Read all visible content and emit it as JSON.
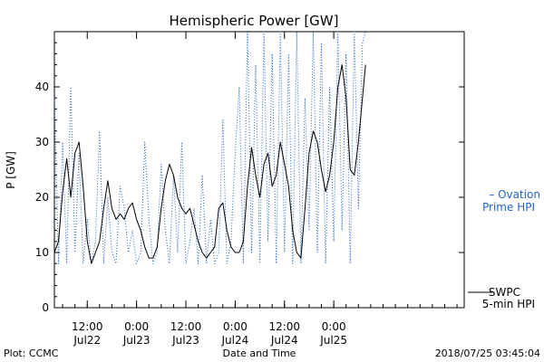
{
  "chart_data": {
    "type": "line",
    "title": "Hemispheric Power [GW]",
    "ylabel": "P [GW]",
    "xlabel": "Date and Time",
    "ylim": [
      0,
      50
    ],
    "yticks": [
      0,
      10,
      20,
      30,
      40
    ],
    "xlim": [
      "2018-07-21T04:00",
      "2018-07-25T07:45"
    ],
    "xticks": [
      {
        "t": "2018-07-21T12:00",
        "time": "12:00",
        "date": "Jul22"
      },
      {
        "t": "2018-07-22T00:00",
        "time": "0:00",
        "date": "Jul23"
      },
      {
        "t": "2018-07-22T12:00",
        "time": "12:00",
        "date": "Jul23"
      },
      {
        "t": "2018-07-23T00:00",
        "time": "0:00",
        "date": "Jul24"
      },
      {
        "t": "2018-07-23T12:00",
        "time": "12:00",
        "date": "Jul24"
      },
      {
        "t": "2018-07-24T00:00",
        "time": "0:00",
        "date": "Jul25"
      }
    ],
    "grid": false,
    "series": [
      {
        "name": "SWPC 5-min HPI",
        "color": "#000000",
        "style": "solid",
        "x": [
          "2018-07-21T04:00",
          "2018-07-21T05:00",
          "2018-07-21T06:00",
          "2018-07-21T07:00",
          "2018-07-21T08:00",
          "2018-07-21T09:00",
          "2018-07-21T10:00",
          "2018-07-21T11:00",
          "2018-07-21T12:00",
          "2018-07-21T13:00",
          "2018-07-21T14:00",
          "2018-07-21T15:00",
          "2018-07-21T16:00",
          "2018-07-21T17:00",
          "2018-07-21T18:00",
          "2018-07-21T19:00",
          "2018-07-21T20:00",
          "2018-07-21T21:00",
          "2018-07-21T22:00",
          "2018-07-21T23:00",
          "2018-07-22T00:00",
          "2018-07-22T01:00",
          "2018-07-22T02:00",
          "2018-07-22T03:00",
          "2018-07-22T04:00",
          "2018-07-22T05:00",
          "2018-07-22T06:00",
          "2018-07-22T07:00",
          "2018-07-22T08:00",
          "2018-07-22T09:00",
          "2018-07-22T10:00",
          "2018-07-22T11:00",
          "2018-07-22T12:00",
          "2018-07-22T13:00",
          "2018-07-22T14:00",
          "2018-07-22T15:00",
          "2018-07-22T16:00",
          "2018-07-22T17:00",
          "2018-07-22T18:00",
          "2018-07-22T19:00",
          "2018-07-22T20:00",
          "2018-07-22T21:00",
          "2018-07-22T22:00",
          "2018-07-22T23:00",
          "2018-07-23T00:00",
          "2018-07-23T01:00",
          "2018-07-23T02:00",
          "2018-07-23T03:00",
          "2018-07-23T04:00",
          "2018-07-23T05:00",
          "2018-07-23T06:00",
          "2018-07-23T07:00",
          "2018-07-23T08:00",
          "2018-07-23T09:00",
          "2018-07-23T10:00",
          "2018-07-23T11:00",
          "2018-07-23T12:00",
          "2018-07-23T13:00",
          "2018-07-23T14:00",
          "2018-07-23T15:00",
          "2018-07-23T16:00",
          "2018-07-23T17:00",
          "2018-07-23T18:00",
          "2018-07-23T19:00",
          "2018-07-23T20:00",
          "2018-07-23T21:00",
          "2018-07-23T22:00",
          "2018-07-23T23:00",
          "2018-07-24T00:00",
          "2018-07-24T01:00",
          "2018-07-24T02:00",
          "2018-07-24T03:00",
          "2018-07-24T04:00",
          "2018-07-24T05:00",
          "2018-07-24T06:00",
          "2018-07-24T07:00",
          "2018-07-24T07:45"
        ],
        "values": [
          10,
          12,
          21,
          27,
          20,
          28,
          30,
          22,
          12,
          8,
          10,
          12,
          18,
          23,
          18,
          16,
          17,
          16,
          18,
          19,
          16,
          14,
          11,
          9,
          9,
          11,
          18,
          23,
          26,
          24,
          20,
          18,
          17,
          18,
          15,
          12,
          10,
          9,
          10,
          11,
          18,
          19,
          14,
          11,
          10,
          10,
          12,
          22,
          29,
          24,
          20,
          26,
          28,
          22,
          24,
          30,
          26,
          22,
          14,
          10,
          9,
          18,
          28,
          32,
          30,
          25,
          21,
          24,
          30,
          40,
          44,
          38,
          25,
          24,
          30,
          38,
          44
        ]
      },
      {
        "name": "Ovation Prime HPI",
        "color": "#2266bb",
        "style": "dotted",
        "x": [
          "2018-07-21T04:00",
          "2018-07-21T05:00",
          "2018-07-21T06:00",
          "2018-07-21T07:00",
          "2018-07-21T08:00",
          "2018-07-21T09:00",
          "2018-07-21T10:00",
          "2018-07-21T11:00",
          "2018-07-21T12:00",
          "2018-07-21T13:00",
          "2018-07-21T14:00",
          "2018-07-21T15:00",
          "2018-07-21T16:00",
          "2018-07-21T17:00",
          "2018-07-21T18:00",
          "2018-07-21T19:00",
          "2018-07-21T20:00",
          "2018-07-21T21:00",
          "2018-07-21T22:00",
          "2018-07-21T23:00",
          "2018-07-22T00:00",
          "2018-07-22T01:00",
          "2018-07-22T02:00",
          "2018-07-22T03:00",
          "2018-07-22T04:00",
          "2018-07-22T05:00",
          "2018-07-22T06:00",
          "2018-07-22T07:00",
          "2018-07-22T08:00",
          "2018-07-22T09:00",
          "2018-07-22T10:00",
          "2018-07-22T11:00",
          "2018-07-22T12:00",
          "2018-07-22T13:00",
          "2018-07-22T14:00",
          "2018-07-22T15:00",
          "2018-07-22T16:00",
          "2018-07-22T17:00",
          "2018-07-22T18:00",
          "2018-07-22T19:00",
          "2018-07-22T20:00",
          "2018-07-22T21:00",
          "2018-07-22T22:00",
          "2018-07-22T23:00",
          "2018-07-23T00:00",
          "2018-07-23T01:00",
          "2018-07-23T02:00",
          "2018-07-23T03:00",
          "2018-07-23T04:00",
          "2018-07-23T05:00",
          "2018-07-23T06:00",
          "2018-07-23T07:00",
          "2018-07-23T08:00",
          "2018-07-23T09:00",
          "2018-07-23T10:00",
          "2018-07-23T11:00",
          "2018-07-23T12:00",
          "2018-07-23T13:00",
          "2018-07-23T14:00",
          "2018-07-23T15:00",
          "2018-07-23T16:00",
          "2018-07-23T17:00",
          "2018-07-23T18:00",
          "2018-07-23T19:00",
          "2018-07-23T20:00",
          "2018-07-23T21:00",
          "2018-07-23T22:00",
          "2018-07-23T23:00",
          "2018-07-24T00:00",
          "2018-07-24T01:00",
          "2018-07-24T02:00",
          "2018-07-24T03:00",
          "2018-07-24T04:00",
          "2018-07-24T05:00",
          "2018-07-24T06:00",
          "2018-07-24T07:00",
          "2018-07-24T07:45"
        ],
        "values": [
          38,
          8,
          30,
          8,
          40,
          10,
          28,
          8,
          16,
          8,
          12,
          32,
          8,
          20,
          10,
          8,
          22,
          18,
          10,
          14,
          8,
          10,
          30,
          16,
          8,
          10,
          26,
          14,
          8,
          24,
          10,
          30,
          8,
          12,
          18,
          8,
          24,
          8,
          16,
          8,
          10,
          34,
          8,
          12,
          28,
          40,
          8,
          50,
          10,
          44,
          8,
          50,
          12,
          46,
          8,
          50,
          10,
          46,
          8,
          50,
          8,
          38,
          14,
          50,
          10,
          48,
          8,
          40,
          12,
          50,
          14,
          46,
          8,
          50,
          18,
          48,
          50
        ]
      }
    ],
    "legend": {
      "placement": "right",
      "ovation_line1": "– Ovation",
      "ovation_line2": "Prime HPI",
      "swpc_line1": "SWPC",
      "swpc_line2": "5-min HPI"
    },
    "footer": {
      "left": "Plot: CCMC",
      "right": "2018/07/25 03:45:04"
    }
  }
}
